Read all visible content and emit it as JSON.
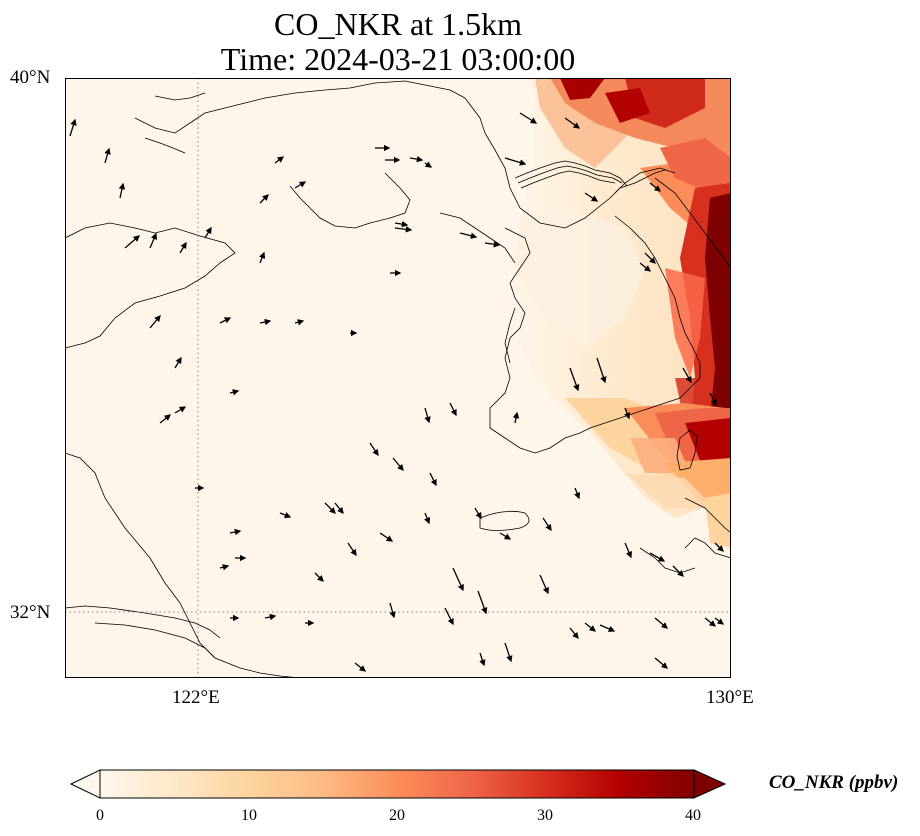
{
  "title": {
    "line1": "CO_NKR at 1.5km",
    "line2": "Time: 2024-03-21 03:00:00"
  },
  "axes": {
    "lat_ticks": [
      "40°N",
      "32°N"
    ],
    "lon_ticks": [
      "122°E",
      "130°E"
    ]
  },
  "colorbar": {
    "label": "CO_NKR (ppbv)",
    "ticks": [
      "0",
      "10",
      "20",
      "30",
      "40"
    ],
    "min": 0,
    "max": 40,
    "extend": "both",
    "colormap": "OrRd",
    "colors": [
      "#fff7ec",
      "#fee8c8",
      "#fdd49e",
      "#fdbb84",
      "#fc8d59",
      "#ef6548",
      "#d7301f",
      "#b30000",
      "#7f0000"
    ]
  },
  "map": {
    "lon_range": [
      120,
      130
    ],
    "lat_range": [
      31,
      40
    ],
    "gridlines": "dotted at 122°E and 32°N",
    "background_color": "#fef6ea",
    "features": [
      "coastlines",
      "wind vectors",
      "CO concentration field"
    ]
  }
}
